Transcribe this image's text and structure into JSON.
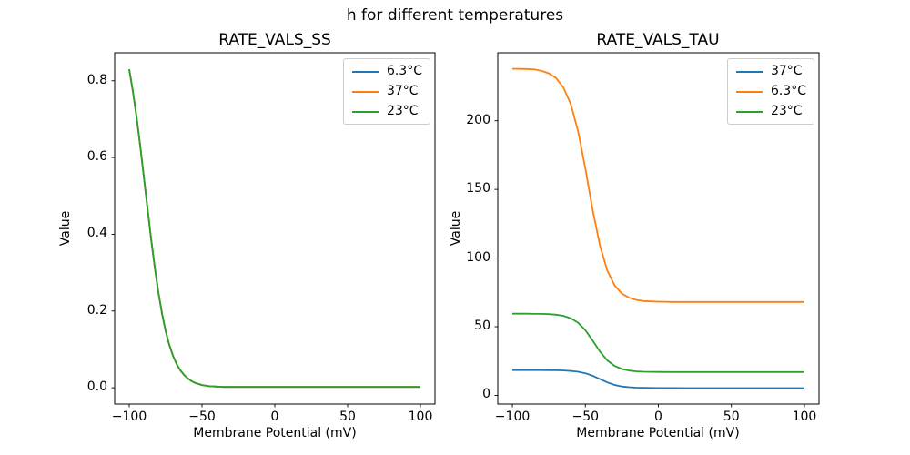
{
  "figure": {
    "suptitle": "h for different temperatures",
    "background": "#ffffff",
    "text_color": "#000000"
  },
  "chart_data": [
    {
      "type": "line",
      "title": "RATE_VALS_SS",
      "xlabel": "Membrane Potential (mV)",
      "ylabel": "Value",
      "xlim": [
        -110,
        110
      ],
      "ylim": [
        -0.0425,
        0.873
      ],
      "xticks": [
        -100,
        -50,
        0,
        50,
        100
      ],
      "xtick_labels": [
        "−100",
        "−50",
        "0",
        "50",
        "100"
      ],
      "yticks": [
        0.0,
        0.2,
        0.4,
        0.6,
        0.8
      ],
      "ytick_labels": [
        "0.0",
        "0.2",
        "0.4",
        "0.6",
        "0.8"
      ],
      "grid": false,
      "legend_position": "upper right",
      "x": [
        -100,
        -97.5,
        -95,
        -92.5,
        -90,
        -87.5,
        -85,
        -82.5,
        -80,
        -77.5,
        -75,
        -72.5,
        -70,
        -67.5,
        -65,
        -62.5,
        -60,
        -57.5,
        -55,
        -52.5,
        -50,
        -45,
        -40,
        -35,
        -30,
        -25,
        -20,
        -10,
        0,
        20,
        40,
        60,
        80,
        100
      ],
      "series": [
        {
          "name": "6.3°C",
          "color": "#1f77b4",
          "values": [
            0.83,
            0.773,
            0.707,
            0.632,
            0.551,
            0.469,
            0.389,
            0.315,
            0.249,
            0.194,
            0.148,
            0.112,
            0.084,
            0.062,
            0.046,
            0.034,
            0.025,
            0.018,
            0.013,
            0.01,
            0.007,
            0.004,
            0.003,
            0.002,
            0.002,
            0.002,
            0.002,
            0.002,
            0.002,
            0.002,
            0.002,
            0.002,
            0.002,
            0.002
          ]
        },
        {
          "name": "37°C",
          "color": "#ff7f0e",
          "values": [
            0.83,
            0.773,
            0.707,
            0.632,
            0.551,
            0.469,
            0.389,
            0.315,
            0.249,
            0.194,
            0.148,
            0.112,
            0.084,
            0.062,
            0.046,
            0.034,
            0.025,
            0.018,
            0.013,
            0.01,
            0.007,
            0.004,
            0.003,
            0.002,
            0.002,
            0.002,
            0.002,
            0.002,
            0.002,
            0.002,
            0.002,
            0.002,
            0.002,
            0.002
          ]
        },
        {
          "name": "23°C",
          "color": "#2ca02c",
          "values": [
            0.83,
            0.773,
            0.707,
            0.632,
            0.551,
            0.469,
            0.389,
            0.315,
            0.249,
            0.194,
            0.148,
            0.112,
            0.084,
            0.062,
            0.046,
            0.034,
            0.025,
            0.018,
            0.013,
            0.01,
            0.007,
            0.004,
            0.003,
            0.002,
            0.002,
            0.002,
            0.002,
            0.002,
            0.002,
            0.002,
            0.002,
            0.002,
            0.002,
            0.002
          ]
        }
      ]
    },
    {
      "type": "line",
      "title": "RATE_VALS_TAU",
      "xlabel": "Membrane Potential (mV)",
      "ylabel": "Value",
      "xlim": [
        -110,
        110
      ],
      "ylim": [
        -6.33,
        249.5
      ],
      "xticks": [
        -100,
        -50,
        0,
        50,
        100
      ],
      "xtick_labels": [
        "−100",
        "−50",
        "0",
        "50",
        "100"
      ],
      "yticks": [
        0,
        50,
        100,
        150,
        200
      ],
      "ytick_labels": [
        "0",
        "50",
        "100",
        "150",
        "200"
      ],
      "grid": false,
      "legend_position": "upper right",
      "x": [
        -100,
        -95,
        -90,
        -85,
        -80,
        -75,
        -70,
        -65,
        -60,
        -55,
        -50,
        -45,
        -40,
        -35,
        -30,
        -25,
        -20,
        -15,
        -10,
        -5,
        0,
        10,
        20,
        30,
        40,
        50,
        60,
        70,
        80,
        90,
        100
      ],
      "series": [
        {
          "name": "37°C",
          "color": "#1f77b4",
          "values": [
            18.4,
            18.4,
            18.4,
            18.39,
            18.37,
            18.34,
            18.27,
            18.13,
            17.82,
            17.21,
            16.08,
            14.25,
            11.85,
            9.45,
            7.62,
            6.48,
            5.92,
            5.63,
            5.47,
            5.39,
            5.35,
            5.31,
            5.3,
            5.3,
            5.3,
            5.3,
            5.3,
            5.3,
            5.3,
            5.3,
            5.3
          ]
        },
        {
          "name": "6.3°C",
          "color": "#ff7f0e",
          "values": [
            237.9,
            237.8,
            237.7,
            237.4,
            236.3,
            234.5,
            231.0,
            224.2,
            212.1,
            192.3,
            165.1,
            135.0,
            109.1,
            91.0,
            80.1,
            74.1,
            71.1,
            69.5,
            68.7,
            68.4,
            68.2,
            68.0,
            68.0,
            68.0,
            68.0,
            68.0,
            68.0,
            68.0,
            68.0,
            68.0,
            68.0
          ]
        },
        {
          "name": "23°C",
          "color": "#2ca02c",
          "values": [
            59.5,
            59.5,
            59.46,
            59.38,
            59.33,
            59.14,
            58.74,
            57.88,
            56.16,
            52.89,
            47.42,
            39.88,
            31.91,
            25.51,
            21.42,
            19.17,
            18.03,
            17.49,
            17.23,
            17.11,
            17.05,
            17.0,
            17.0,
            17.0,
            17.0,
            17.0,
            17.0,
            17.0,
            17.0,
            17.0,
            17.0
          ]
        }
      ]
    }
  ]
}
